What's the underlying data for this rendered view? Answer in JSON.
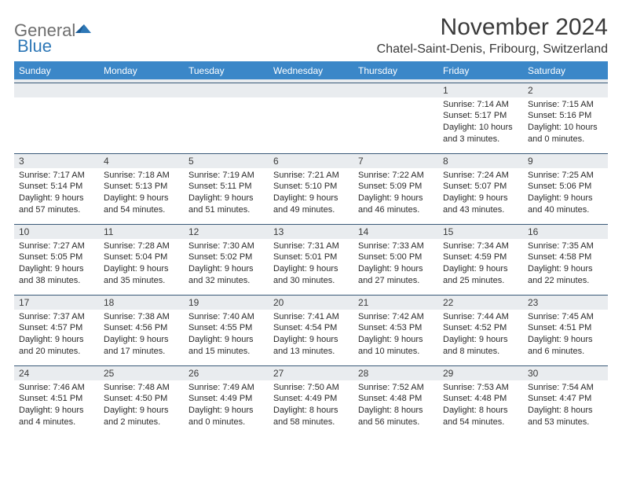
{
  "logo": {
    "text1": "General",
    "text2": "Blue",
    "accent": "#2e78b7",
    "muted": "#6e6e6e",
    "blue": "#3b87c8"
  },
  "title": "November 2024",
  "location": "Chatel-Saint-Denis, Fribourg, Switzerland",
  "colors": {
    "header_bg": "#3b87c8",
    "header_text": "#ffffff",
    "daybar_bg": "#e9ecef",
    "grid_border": "#3a5a78",
    "body_text": "#2a2a2a"
  },
  "weekdays": [
    "Sunday",
    "Monday",
    "Tuesday",
    "Wednesday",
    "Thursday",
    "Friday",
    "Saturday"
  ],
  "weeks": [
    [
      null,
      null,
      null,
      null,
      null,
      {
        "day": 1,
        "sunrise": "Sunrise: 7:14 AM",
        "sunset": "Sunset: 5:17 PM",
        "daylight": "Daylight: 10 hours and 3 minutes."
      },
      {
        "day": 2,
        "sunrise": "Sunrise: 7:15 AM",
        "sunset": "Sunset: 5:16 PM",
        "daylight": "Daylight: 10 hours and 0 minutes."
      }
    ],
    [
      {
        "day": 3,
        "sunrise": "Sunrise: 7:17 AM",
        "sunset": "Sunset: 5:14 PM",
        "daylight": "Daylight: 9 hours and 57 minutes."
      },
      {
        "day": 4,
        "sunrise": "Sunrise: 7:18 AM",
        "sunset": "Sunset: 5:13 PM",
        "daylight": "Daylight: 9 hours and 54 minutes."
      },
      {
        "day": 5,
        "sunrise": "Sunrise: 7:19 AM",
        "sunset": "Sunset: 5:11 PM",
        "daylight": "Daylight: 9 hours and 51 minutes."
      },
      {
        "day": 6,
        "sunrise": "Sunrise: 7:21 AM",
        "sunset": "Sunset: 5:10 PM",
        "daylight": "Daylight: 9 hours and 49 minutes."
      },
      {
        "day": 7,
        "sunrise": "Sunrise: 7:22 AM",
        "sunset": "Sunset: 5:09 PM",
        "daylight": "Daylight: 9 hours and 46 minutes."
      },
      {
        "day": 8,
        "sunrise": "Sunrise: 7:24 AM",
        "sunset": "Sunset: 5:07 PM",
        "daylight": "Daylight: 9 hours and 43 minutes."
      },
      {
        "day": 9,
        "sunrise": "Sunrise: 7:25 AM",
        "sunset": "Sunset: 5:06 PM",
        "daylight": "Daylight: 9 hours and 40 minutes."
      }
    ],
    [
      {
        "day": 10,
        "sunrise": "Sunrise: 7:27 AM",
        "sunset": "Sunset: 5:05 PM",
        "daylight": "Daylight: 9 hours and 38 minutes."
      },
      {
        "day": 11,
        "sunrise": "Sunrise: 7:28 AM",
        "sunset": "Sunset: 5:04 PM",
        "daylight": "Daylight: 9 hours and 35 minutes."
      },
      {
        "day": 12,
        "sunrise": "Sunrise: 7:30 AM",
        "sunset": "Sunset: 5:02 PM",
        "daylight": "Daylight: 9 hours and 32 minutes."
      },
      {
        "day": 13,
        "sunrise": "Sunrise: 7:31 AM",
        "sunset": "Sunset: 5:01 PM",
        "daylight": "Daylight: 9 hours and 30 minutes."
      },
      {
        "day": 14,
        "sunrise": "Sunrise: 7:33 AM",
        "sunset": "Sunset: 5:00 PM",
        "daylight": "Daylight: 9 hours and 27 minutes."
      },
      {
        "day": 15,
        "sunrise": "Sunrise: 7:34 AM",
        "sunset": "Sunset: 4:59 PM",
        "daylight": "Daylight: 9 hours and 25 minutes."
      },
      {
        "day": 16,
        "sunrise": "Sunrise: 7:35 AM",
        "sunset": "Sunset: 4:58 PM",
        "daylight": "Daylight: 9 hours and 22 minutes."
      }
    ],
    [
      {
        "day": 17,
        "sunrise": "Sunrise: 7:37 AM",
        "sunset": "Sunset: 4:57 PM",
        "daylight": "Daylight: 9 hours and 20 minutes."
      },
      {
        "day": 18,
        "sunrise": "Sunrise: 7:38 AM",
        "sunset": "Sunset: 4:56 PM",
        "daylight": "Daylight: 9 hours and 17 minutes."
      },
      {
        "day": 19,
        "sunrise": "Sunrise: 7:40 AM",
        "sunset": "Sunset: 4:55 PM",
        "daylight": "Daylight: 9 hours and 15 minutes."
      },
      {
        "day": 20,
        "sunrise": "Sunrise: 7:41 AM",
        "sunset": "Sunset: 4:54 PM",
        "daylight": "Daylight: 9 hours and 13 minutes."
      },
      {
        "day": 21,
        "sunrise": "Sunrise: 7:42 AM",
        "sunset": "Sunset: 4:53 PM",
        "daylight": "Daylight: 9 hours and 10 minutes."
      },
      {
        "day": 22,
        "sunrise": "Sunrise: 7:44 AM",
        "sunset": "Sunset: 4:52 PM",
        "daylight": "Daylight: 9 hours and 8 minutes."
      },
      {
        "day": 23,
        "sunrise": "Sunrise: 7:45 AM",
        "sunset": "Sunset: 4:51 PM",
        "daylight": "Daylight: 9 hours and 6 minutes."
      }
    ],
    [
      {
        "day": 24,
        "sunrise": "Sunrise: 7:46 AM",
        "sunset": "Sunset: 4:51 PM",
        "daylight": "Daylight: 9 hours and 4 minutes."
      },
      {
        "day": 25,
        "sunrise": "Sunrise: 7:48 AM",
        "sunset": "Sunset: 4:50 PM",
        "daylight": "Daylight: 9 hours and 2 minutes."
      },
      {
        "day": 26,
        "sunrise": "Sunrise: 7:49 AM",
        "sunset": "Sunset: 4:49 PM",
        "daylight": "Daylight: 9 hours and 0 minutes."
      },
      {
        "day": 27,
        "sunrise": "Sunrise: 7:50 AM",
        "sunset": "Sunset: 4:49 PM",
        "daylight": "Daylight: 8 hours and 58 minutes."
      },
      {
        "day": 28,
        "sunrise": "Sunrise: 7:52 AM",
        "sunset": "Sunset: 4:48 PM",
        "daylight": "Daylight: 8 hours and 56 minutes."
      },
      {
        "day": 29,
        "sunrise": "Sunrise: 7:53 AM",
        "sunset": "Sunset: 4:48 PM",
        "daylight": "Daylight: 8 hours and 54 minutes."
      },
      {
        "day": 30,
        "sunrise": "Sunrise: 7:54 AM",
        "sunset": "Sunset: 4:47 PM",
        "daylight": "Daylight: 8 hours and 53 minutes."
      }
    ]
  ]
}
